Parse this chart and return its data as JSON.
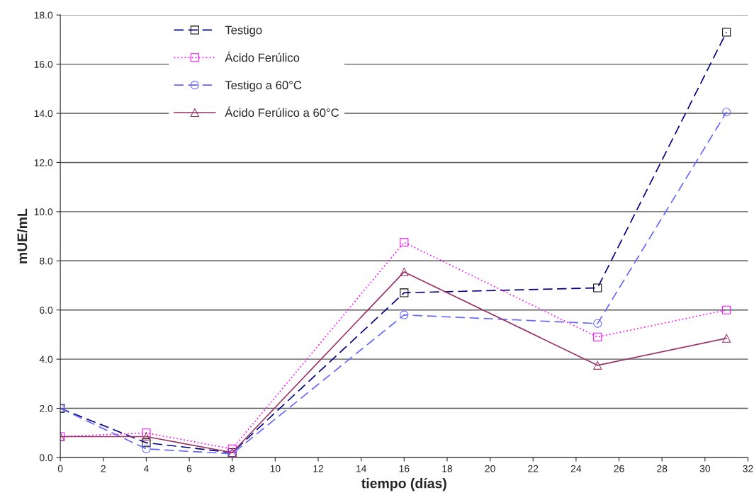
{
  "chart_data": {
    "type": "line",
    "xlabel": "tiempo (días)",
    "ylabel": "mUE/mL",
    "x": [
      0,
      4,
      8,
      16,
      25,
      31
    ],
    "series": [
      {
        "name": "Testigo",
        "color": "#000080",
        "marker": "square",
        "line_style": "dashed",
        "values": [
          2.0,
          0.6,
          0.2,
          6.7,
          6.9,
          17.3
        ]
      },
      {
        "name": "Ácido Ferúlico",
        "color": "#ff00ff",
        "marker": "square",
        "line_style": "dotted",
        "values": [
          0.85,
          1.0,
          0.35,
          8.75,
          4.9,
          6.0
        ]
      },
      {
        "name": "Testigo a 60°C",
        "color": "#6666ff",
        "marker": "circle",
        "line_style": "dashed",
        "values": [
          2.0,
          0.35,
          0.15,
          5.8,
          5.45,
          14.05
        ]
      },
      {
        "name": "Ácido Ferúlico a 60°C",
        "color": "#993366",
        "marker": "triangle",
        "line_style": "solid",
        "values": [
          0.85,
          0.85,
          0.2,
          7.55,
          3.75,
          4.85
        ]
      }
    ],
    "xlim": [
      0,
      32
    ],
    "xticks": [
      0,
      2,
      4,
      6,
      8,
      10,
      12,
      14,
      16,
      18,
      20,
      22,
      24,
      26,
      28,
      30,
      32
    ],
    "ylim": [
      0,
      18
    ],
    "yticks": [
      {
        "value": 0,
        "label": "0.0"
      },
      {
        "value": 2,
        "label": "2.0"
      },
      {
        "value": 4,
        "label": "4.0"
      },
      {
        "value": 6,
        "label": "6.0"
      },
      {
        "value": 8,
        "label": "8.0"
      },
      {
        "value": 10,
        "label": "10.0"
      },
      {
        "value": 12,
        "label": "12.0"
      },
      {
        "value": 14,
        "label": "14.0"
      },
      {
        "value": 16,
        "label": "16.0"
      },
      {
        "value": 18,
        "label": "18.0"
      }
    ],
    "grid": "y",
    "legend": "top left"
  }
}
